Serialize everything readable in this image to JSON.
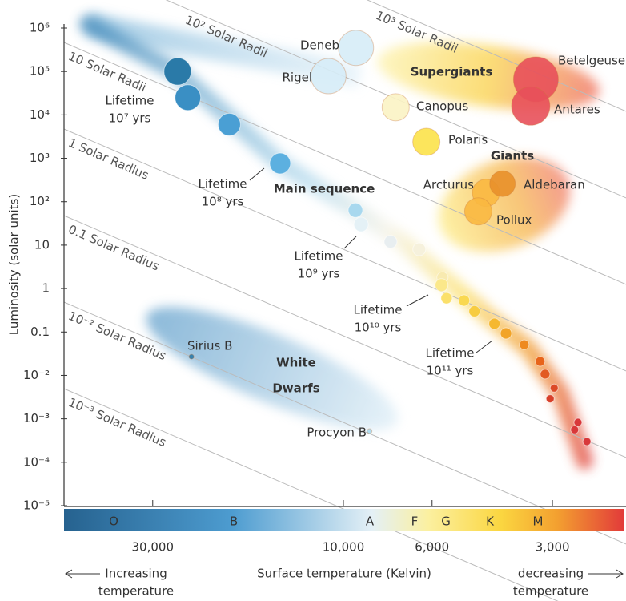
{
  "chart_data": {
    "type": "scatter",
    "y_label": "Luminosity (solar units)",
    "x_label": "Surface temperature (Kelvin)",
    "xscale": "log",
    "yscale": "log",
    "xlim": [
      50000,
      2000
    ],
    "ylim": [
      1e-05,
      1000000
    ],
    "xticks": [
      {
        "value": 30000,
        "label": "30,000"
      },
      {
        "value": 10000,
        "label": "10,000"
      },
      {
        "value": 6000,
        "label": "6,000"
      },
      {
        "value": 3000,
        "label": "3,000"
      }
    ],
    "yticks": [
      {
        "value": 1e-05,
        "label": "10⁻⁵"
      },
      {
        "value": 0.0001,
        "label": "10⁻⁴"
      },
      {
        "value": 0.001,
        "label": "10⁻³"
      },
      {
        "value": 0.01,
        "label": "10⁻²"
      },
      0.1,
      1,
      10,
      {
        "value": 100,
        "label": "10²"
      },
      {
        "value": 1000,
        "label": "10³"
      },
      {
        "value": 10000,
        "label": "10⁴"
      },
      {
        "value": 100000,
        "label": "10⁵"
      },
      {
        "value": 1000000,
        "label": "10⁶"
      }
    ],
    "spectral_classes": [
      "O",
      "B",
      "A",
      "F",
      "G",
      "K",
      "M"
    ],
    "left_arrow": [
      "Increasing",
      "temperature"
    ],
    "right_arrow": [
      "decreasing",
      "temperature"
    ],
    "radius_lines": [
      "10³ Solar Radii",
      "10² Solar Radii",
      "10 Solar Radii",
      "1 Solar Radius",
      "0.1 Solar Radius",
      "10⁻² Solar Radius",
      "10⁻³ Solar Radius"
    ],
    "regions": {
      "supergiants": "Supergiants",
      "giants": "Giants",
      "main_sequence": "Main sequence",
      "white_dwarfs": [
        "White",
        "Dwarfs"
      ]
    },
    "lifetimes": [
      [
        "Lifetime",
        "10⁷ yrs"
      ],
      [
        "Lifetime",
        "10⁸ yrs"
      ],
      [
        "Lifetime",
        "10⁹ yrs"
      ],
      [
        "Lifetime",
        "10¹⁰ yrs"
      ],
      [
        "Lifetime",
        "10¹¹ yrs"
      ]
    ],
    "stars": {
      "names": [
        "Deneb",
        "Rigel",
        "Canopus",
        "Polaris",
        "Betelgeuse",
        "Antares",
        "Arcturus",
        "Aldebaran",
        "Pollux",
        "Sirius B",
        "Procyon B"
      ],
      "x": [
        9300,
        10900,
        7400,
        6200,
        3300,
        3400,
        4400,
        4000,
        4600,
        24000,
        8600
      ],
      "y": [
        350000,
        78000,
        15000,
        2400,
        66000,
        16000,
        160,
        260,
        60,
        0.027,
        0.00052
      ],
      "colors": [
        "#d6ecf7",
        "#d6ecf7",
        "#fbf3c4",
        "#fce24a",
        "#e8505a",
        "#e8505a",
        "#f9b840",
        "#e8902a",
        "#f9b840",
        "#2a7aa8",
        "#a8d8ee"
      ]
    },
    "dots": {
      "x": [
        26000,
        24500,
        19300,
        14400,
        9330,
        9030,
        7620,
        6460,
        5650,
        5680,
        5520,
        4990,
        4700,
        4190,
        3920,
        3530,
        3220,
        3130,
        2970,
        3040,
        2590,
        2640,
        2460
      ],
      "y": [
        100000,
        25000,
        6000,
        760,
        64,
        30,
        12,
        8,
        1.8,
        1.2,
        0.6,
        0.53,
        0.3,
        0.155,
        0.093,
        0.051,
        0.021,
        0.0107,
        0.0051,
        0.0029,
        0.00083,
        0.00056,
        0.0003
      ],
      "colors": [
        "#2a7aa8",
        "#3a8fc4",
        "#4a9fd4",
        "#5cb0e0",
        "#a8d8ee",
        "#e4f1f6",
        "#e8eef0",
        "#f6f1dc",
        "#f8eab0",
        "#fbe88a",
        "#fbe06a",
        "#f9d850",
        "#f7cc40",
        "#f5b830",
        "#f2a428",
        "#ee8a20",
        "#e8641a",
        "#e25a22",
        "#dc4a26",
        "#d8402a",
        "#d8383a",
        "#d8383a",
        "#d8383a"
      ]
    }
  }
}
